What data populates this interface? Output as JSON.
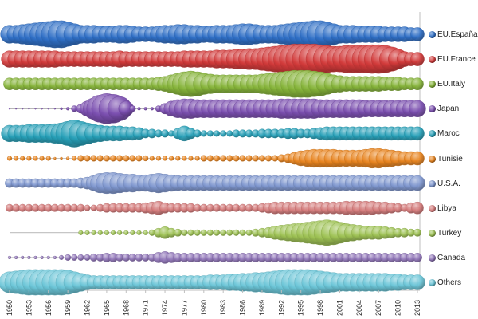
{
  "chart_data": {
    "type": "bubble-timeline",
    "title": "",
    "xlabel": "",
    "ylabel": "",
    "x_range": [
      1950,
      2013
    ],
    "x_tick_labels": [
      "1950",
      "1953",
      "1956",
      "1959",
      "1962",
      "1965",
      "1968",
      "1971",
      "1974",
      "1977",
      "1980",
      "1983",
      "1986",
      "1989",
      "1992",
      "1995",
      "1998",
      "2001",
      "2004",
      "2007",
      "2010",
      "2013"
    ],
    "legend_position": "right",
    "grid": false,
    "note": "Bubble diameter encodes relative magnitude per year; values are estimated on a relative 0-10 scale.",
    "series": [
      {
        "name": "EU.España",
        "color": "#2f6fc6",
        "values": [
          6,
          6,
          6.5,
          7,
          7.5,
          8,
          8.5,
          9,
          9,
          8,
          7,
          6,
          6,
          6,
          5.5,
          5.5,
          5.5,
          6,
          6,
          5.5,
          5,
          5,
          5,
          5.5,
          6,
          6,
          6.5,
          6.5,
          6,
          6,
          5.5,
          5.5,
          6,
          6,
          6,
          6.5,
          7,
          7,
          6.5,
          6,
          6,
          6,
          6.5,
          7,
          7.5,
          8,
          8.5,
          9,
          9,
          8,
          7,
          6,
          6,
          6,
          5.5,
          5.5,
          5.5,
          5.5,
          5,
          5,
          5,
          5,
          4.5,
          4.5
        ]
      },
      {
        "name": "EU.France",
        "color": "#d23a3a",
        "values": [
          5.5,
          5.5,
          5.5,
          5.5,
          5.5,
          5.5,
          5.5,
          5.5,
          5,
          5,
          5,
          5,
          5,
          5,
          5,
          5,
          5,
          5.5,
          5,
          5,
          5,
          5,
          5,
          5,
          5,
          5,
          5,
          5.5,
          5.5,
          5.5,
          5.5,
          5.5,
          6,
          6,
          6,
          6.5,
          6.5,
          7,
          7,
          7.5,
          8,
          8.5,
          9,
          9.5,
          10,
          10,
          10,
          10,
          9.5,
          9,
          8.5,
          8.5,
          9,
          9,
          9,
          9,
          9.5,
          9.5,
          9,
          8,
          6.5,
          5,
          4.5,
          4.5
        ]
      },
      {
        "name": "EU.Italy",
        "color": "#86b43a",
        "values": [
          4,
          4,
          4,
          4,
          4,
          4,
          4,
          4,
          4,
          4,
          4,
          4,
          4,
          4,
          4,
          4,
          4,
          4,
          4,
          4,
          4,
          4,
          4,
          4.5,
          5,
          6,
          7,
          8,
          8.5,
          8,
          7,
          6.5,
          6,
          6,
          6,
          6,
          6,
          6,
          6,
          6.5,
          7,
          7.5,
          8,
          8.5,
          9,
          9,
          9,
          8.5,
          8,
          7,
          6,
          5.5,
          5,
          5,
          5,
          5,
          5,
          5,
          4.5,
          4.5,
          4.5,
          4,
          4,
          4
        ]
      },
      {
        "name": "Japan",
        "color": "#7b4fb0",
        "values": [
          0.2,
          0.2,
          0.2,
          0.2,
          0.2,
          0.2,
          0.2,
          0.5,
          0.8,
          1,
          2,
          3,
          5,
          7,
          9,
          10,
          9.5,
          8,
          5,
          2,
          1,
          1,
          1,
          2,
          3.5,
          5,
          6,
          6.5,
          6.5,
          6,
          6,
          6,
          6,
          6,
          6,
          6,
          6,
          6,
          6,
          6,
          6,
          6,
          6.5,
          6.5,
          6.5,
          6.5,
          6.5,
          6.5,
          6,
          6,
          6,
          6,
          6,
          6,
          6,
          5.5,
          5.5,
          5.5,
          5.5,
          5.5,
          5.5,
          5.5,
          5.5,
          5.5
        ]
      },
      {
        "name": "Maroc",
        "color": "#27a0b8",
        "values": [
          5.5,
          5.5,
          5.5,
          6,
          6,
          6,
          6,
          6.5,
          7,
          8,
          9,
          8,
          7,
          6,
          5.5,
          5,
          5,
          5,
          4.5,
          4.5,
          4,
          3,
          3,
          2.5,
          2.5,
          2,
          3.5,
          5,
          3.5,
          2.5,
          2,
          2,
          2,
          2,
          2,
          2.5,
          2.5,
          2.5,
          2.5,
          3,
          3,
          3,
          3,
          3.5,
          3.5,
          3,
          3,
          3.5,
          4,
          4.5,
          4.5,
          4.5,
          4.5,
          4.5,
          4.5,
          4.5,
          4.5,
          4.5,
          4.5,
          4.5,
          4.5,
          4.5,
          4.5,
          4.5
        ]
      },
      {
        "name": "Tunisie",
        "color": "#e8841f",
        "values": [
          1.5,
          1.5,
          1.5,
          1.5,
          1.5,
          1.5,
          1.5,
          0.8,
          0.8,
          1,
          1.5,
          2,
          2,
          2,
          2,
          2,
          2,
          2,
          2,
          2,
          2,
          1.8,
          1.5,
          1.5,
          1.5,
          1.5,
          1.5,
          1.5,
          1.5,
          1.5,
          2,
          2,
          2,
          2,
          2,
          2,
          2,
          2,
          2,
          2,
          2,
          2,
          2.5,
          3,
          4,
          5,
          5.5,
          6,
          6,
          6,
          6,
          5.5,
          5.5,
          5.5,
          5.5,
          6,
          6.5,
          6.5,
          6,
          5.5,
          5,
          4.5,
          4.5,
          4.5
        ]
      },
      {
        "name": "U.S.A.",
        "color": "#7f97cf",
        "values": [
          3,
          3,
          3,
          3,
          3,
          3,
          3,
          3,
          3,
          3,
          3,
          3.5,
          4,
          5,
          6.5,
          7,
          7,
          6.5,
          6,
          6,
          5.5,
          5.5,
          6,
          6.5,
          6,
          5.5,
          5,
          5,
          5,
          5,
          5,
          5,
          5,
          5,
          5,
          5,
          5,
          5,
          5,
          5,
          5,
          5,
          5,
          5,
          5,
          5,
          5,
          5,
          5,
          5,
          5,
          5,
          5,
          5,
          5,
          5,
          5,
          5,
          5,
          5,
          5,
          5,
          5,
          5
        ]
      },
      {
        "name": "Libya",
        "color": "#d47a7a",
        "values": [
          2.5,
          2.5,
          2.5,
          2.5,
          2.5,
          2.5,
          2.5,
          2.5,
          2.5,
          2.5,
          2.5,
          2.5,
          2,
          2,
          2.5,
          3,
          3,
          3,
          3,
          3,
          3,
          3.5,
          4,
          4.5,
          3.5,
          3,
          3,
          3,
          3,
          2.5,
          2.5,
          2.5,
          2.5,
          2.5,
          2.5,
          2.5,
          2.5,
          2.5,
          2.5,
          3,
          3.5,
          4,
          4,
          4,
          4,
          4,
          4,
          4,
          4,
          4,
          4,
          4,
          4.5,
          4.5,
          4.5,
          4.5,
          4.5,
          4,
          4,
          3.5,
          3,
          2.5,
          3.5,
          4
        ]
      },
      {
        "name": "Turkey",
        "color": "#9ec254",
        "values": [
          0,
          0,
          0,
          0,
          0,
          0,
          0,
          0,
          0,
          0,
          0,
          1.5,
          1.5,
          1.5,
          1.5,
          1.5,
          1.5,
          1.5,
          1.5,
          1.5,
          1.5,
          1.5,
          2,
          3,
          4,
          3,
          2.5,
          2,
          2,
          2,
          2,
          2,
          2,
          2,
          2,
          2,
          2,
          2,
          2.5,
          3,
          3.5,
          4.5,
          5,
          5.5,
          6,
          6.5,
          7,
          7.5,
          8,
          8.5,
          8,
          7,
          6,
          5.5,
          5,
          4.5,
          4.5,
          4.5,
          4,
          3.5,
          3,
          3,
          2.5,
          2.5
        ]
      },
      {
        "name": "Canada",
        "color": "#9075b8",
        "values": [
          1,
          1,
          1,
          1,
          1,
          1,
          1,
          1,
          1.5,
          2,
          2,
          2,
          2,
          2.5,
          2.5,
          3,
          3,
          2.5,
          2.5,
          2.5,
          2.5,
          2.5,
          2.5,
          3.5,
          4,
          3.5,
          3,
          3,
          3,
          3,
          3,
          3,
          3,
          3,
          3,
          3,
          3,
          3,
          3,
          3,
          3,
          3,
          3,
          3,
          3,
          3,
          3,
          3,
          3,
          3,
          3,
          3,
          3,
          3,
          3,
          3,
          3,
          3,
          3,
          3,
          3,
          3,
          3,
          3
        ]
      },
      {
        "name": "Others",
        "color": "#6cc6d8",
        "values": [
          7,
          7.5,
          8,
          8.5,
          8.5,
          8.5,
          8.5,
          8.5,
          8.5,
          8,
          7,
          6,
          5,
          4.5,
          4.5,
          4.5,
          4.5,
          4.5,
          4.5,
          4.5,
          4.5,
          4.5,
          4.5,
          4.5,
          4.5,
          4.5,
          4.5,
          4.5,
          4.5,
          4.5,
          4.5,
          5,
          5,
          5,
          5.5,
          5.5,
          6,
          6,
          6.5,
          6.5,
          7,
          7.5,
          8,
          8.5,
          8.5,
          8.5,
          8.5,
          8,
          7.5,
          7,
          6.5,
          6,
          6,
          6,
          6,
          6,
          6,
          6,
          6,
          5.5,
          5.5,
          5,
          5,
          5
        ]
      }
    ]
  }
}
